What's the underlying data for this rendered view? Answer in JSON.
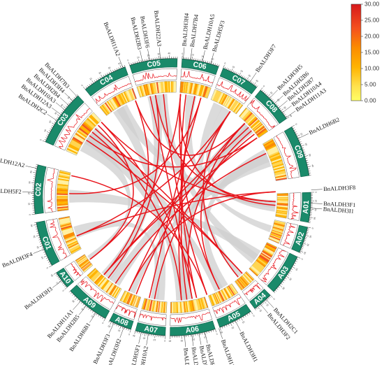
{
  "chromosomes": [
    {
      "name": "A01",
      "a0": 88.0,
      "a1": 100.5,
      "length": 36
    },
    {
      "name": "A02",
      "a0": 102.5,
      "a1": 113.5,
      "length": 32
    },
    {
      "name": "A03",
      "a0": 115.5,
      "a1": 133.0,
      "length": 38
    },
    {
      "name": "A04",
      "a0": 135.0,
      "a1": 143.5,
      "length": 24
    },
    {
      "name": "A05",
      "a0": 145.5,
      "a1": 160.0,
      "length": 30
    },
    {
      "name": "A06",
      "a0": 162.0,
      "a1": 181.0,
      "length": 40
    },
    {
      "name": "A07",
      "a0": 183.0,
      "a1": 195.5,
      "length": 30
    },
    {
      "name": "A08",
      "a0": 197.5,
      "a1": 207.0,
      "length": 22
    },
    {
      "name": "A09",
      "a0": 209.0,
      "a1": 227.5,
      "length": 38
    },
    {
      "name": "A10",
      "a0": 229.5,
      "a1": 237.0,
      "length": 20
    },
    {
      "name": "C01",
      "a0": 240.5,
      "a1": 259.5,
      "length": 42
    },
    {
      "name": "C02",
      "a0": 263.0,
      "a1": 283.5,
      "length": 48
    },
    {
      "name": "C03",
      "a0": 293.5,
      "a1": 317.0,
      "length": 58
    },
    {
      "name": "C04",
      "a0": 321.0,
      "a1": 340.0,
      "length": 44
    },
    {
      "name": "C05",
      "a0": 342.0,
      "a1": 362.0,
      "length": 48
    },
    {
      "name": "C06",
      "a0": 364.0,
      "a1": 379.5,
      "length": 38
    },
    {
      "name": "C07",
      "a0": 381.5,
      "a1": 397.5,
      "length": 44
    },
    {
      "name": "C08",
      "a0": 399.5,
      "a1": 415.5,
      "length": 40
    },
    {
      "name": "C09",
      "a0": 419.5,
      "a1": 441.0,
      "length": 48
    }
  ],
  "genes": [
    {
      "name": "BnALDH3F1",
      "angle": 92.5
    },
    {
      "name": "BnALDH3I1",
      "angle": 94.5
    },
    {
      "name": "BnALDH2C1",
      "angle": 137.5
    },
    {
      "name": "BnALDH3F2",
      "angle": 140.5
    },
    {
      "name": "BnALDH3H1",
      "angle": 153.0
    },
    {
      "name": "BnALDH12A1",
      "angle": 160.5
    },
    {
      "name": "BnALDH7B1",
      "angle": 166.5
    },
    {
      "name": "BnALDH2B1",
      "angle": 169.0
    },
    {
      "name": "BnALDH10A1",
      "angle": 172.0
    },
    {
      "name": "BnALDH2A1",
      "angle": 175.0
    },
    {
      "name": "BnALDH10A2",
      "angle": 190.0
    },
    {
      "name": "BnALDH5F1",
      "angle": 193.0
    },
    {
      "name": "BnALDH3H2",
      "angle": 200.5
    },
    {
      "name": "BnALDH3F3",
      "angle": 205.0
    },
    {
      "name": "BnALDH6B1",
      "angle": 213.5
    },
    {
      "name": "BnALDH2B5",
      "angle": 218.5
    },
    {
      "name": "BnALDH11A1",
      "angle": 221.5
    },
    {
      "name": "BnALDH3H3",
      "angle": 233.0
    },
    {
      "name": "BnALDH3F4",
      "angle": 248.0
    },
    {
      "name": "BnALDH5F2",
      "angle": 272.0
    },
    {
      "name": "BnALDH12A2",
      "angle": 282.0
    },
    {
      "name": "BnALDH2C2",
      "angle": 303.5
    },
    {
      "name": "BnALDH12A3",
      "angle": 306.5
    },
    {
      "name": "BnALDH10A3",
      "angle": 309.0
    },
    {
      "name": "BnALDH2B4",
      "angle": 311.5
    },
    {
      "name": "BnALDH3H4",
      "angle": 314.0
    },
    {
      "name": "BnALDH7B3",
      "angle": 316.5
    },
    {
      "name": "BnALDH11A2",
      "angle": 339.0
    },
    {
      "name": "BnALDH2B3",
      "angle": 347.5
    },
    {
      "name": "BnALDH3F6",
      "angle": 350.5
    },
    {
      "name": "BnALDH22A3",
      "angle": 355.0
    },
    {
      "name": "BnALDH3H4",
      "angle": 364.5
    },
    {
      "name": "BnALDH7B4",
      "angle": 367.5
    },
    {
      "name": "BnALDH10A5",
      "angle": 372.5
    },
    {
      "name": "BnALDH5F3",
      "angle": 376.0
    },
    {
      "name": "BnALDH3F7",
      "angle": 394.0
    },
    {
      "name": "BnALDH3H5",
      "angle": 404.5
    },
    {
      "name": "BnALDH2B6",
      "angle": 407.5
    },
    {
      "name": "BnALDH2B7",
      "angle": 410.0
    },
    {
      "name": "BnALDH10A4",
      "angle": 412.5
    },
    {
      "name": "BnALDH11A3",
      "angle": 415.0
    },
    {
      "name": "BnALDH6B2",
      "angle": 425.0
    },
    {
      "name": "BnALDH3F8",
      "angle": 447.0
    }
  ],
  "links": [
    [
      92.5,
      316.5
    ],
    [
      94.5,
      364.5
    ],
    [
      137.5,
      311.5
    ],
    [
      140.5,
      394.0
    ],
    [
      153.0,
      404.5
    ],
    [
      160.5,
      282.0
    ],
    [
      166.5,
      316.5
    ],
    [
      169.0,
      347.5
    ],
    [
      172.0,
      372.5
    ],
    [
      175.0,
      309.0
    ],
    [
      190.0,
      412.5
    ],
    [
      193.0,
      376.0
    ],
    [
      200.5,
      404.5
    ],
    [
      205.0,
      447.0
    ],
    [
      213.5,
      425.0
    ],
    [
      218.5,
      350.5
    ],
    [
      221.5,
      339.0
    ],
    [
      233.0,
      364.5
    ],
    [
      248.0,
      394.0
    ],
    [
      272.0,
      376.0
    ],
    [
      306.5,
      415.0
    ],
    [
      303.5,
      137.5
    ],
    [
      355.0,
      160.5
    ],
    [
      367.5,
      166.5
    ],
    [
      410.0,
      169.0
    ],
    [
      407.5,
      221.5
    ],
    [
      314.0,
      233.0
    ],
    [
      350.5,
      92.5
    ],
    [
      372.5,
      175.0
    ],
    [
      415.0,
      221.5
    ],
    [
      447.0,
      248.0
    ],
    [
      394.0,
      205.0
    ],
    [
      364.5,
      153.0
    ],
    [
      339.0,
      404.5
    ]
  ],
  "legend": {
    "ticks": [
      "30.00",
      "25.00",
      "20.00",
      "15.00",
      "10.00",
      "5.00",
      "0.00"
    ],
    "colors": [
      "#d7191c",
      "#f4511e",
      "#fb8c00",
      "#ffb300",
      "#ffd54f",
      "#ffff66"
    ]
  },
  "colors": {
    "chromosome": "#1a8a6a",
    "link": "#e8141b",
    "background_link": "#cfcfcf",
    "line": "#e8141b"
  }
}
